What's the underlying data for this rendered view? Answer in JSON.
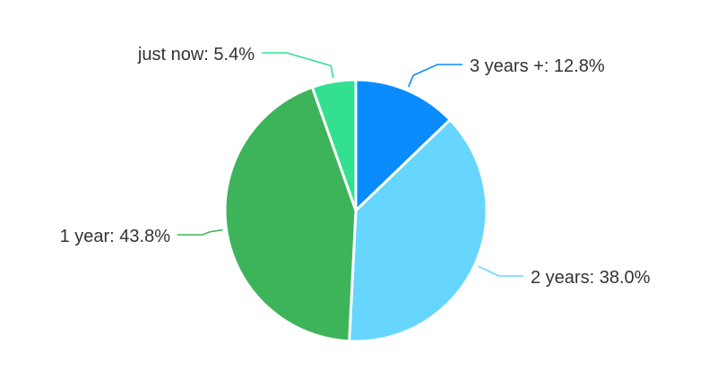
{
  "chart_data": {
    "type": "pie",
    "start_angle_deg": 90,
    "direction": "clockwise",
    "slices": [
      {
        "label": "3 years +",
        "value": 12.8,
        "display": "3 years +: 12.8%",
        "color": "#0A8CFF"
      },
      {
        "label": "2 years",
        "value": 38.0,
        "display": "2 years: 38.0%",
        "color": "#66D6FF"
      },
      {
        "label": "1 year",
        "value": 43.8,
        "display": "1 year: 43.8%",
        "color": "#3DB45A"
      },
      {
        "label": "just now",
        "value": 5.4,
        "display": "just now: 5.4%",
        "color": "#33E090"
      }
    ]
  }
}
